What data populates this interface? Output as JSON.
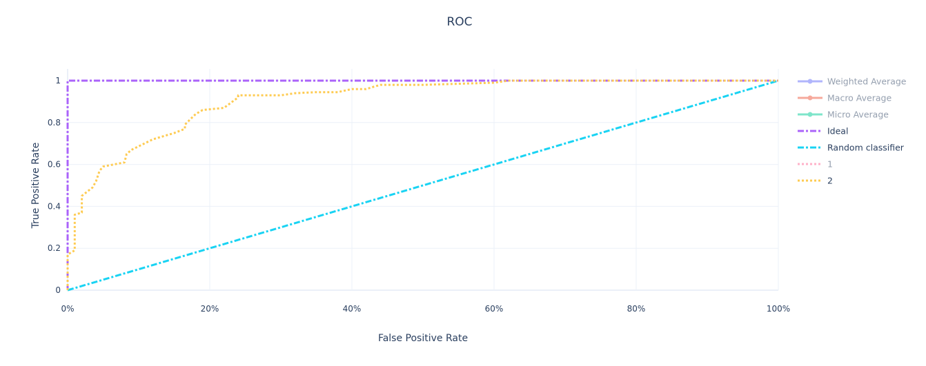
{
  "chart_data": {
    "type": "line",
    "title": "ROC",
    "xlabel": "False Positive Rate",
    "ylabel": "True Positive Rate",
    "xlim": [
      0,
      1
    ],
    "ylim": [
      0,
      1
    ],
    "x_ticks": [
      "0%",
      "20%",
      "40%",
      "60%",
      "80%",
      "100%"
    ],
    "y_ticks": [
      "0",
      "0.2",
      "0.4",
      "0.6",
      "0.8",
      "1"
    ],
    "grid": true,
    "legend_position": "right",
    "series": [
      {
        "name": "Weighted Average",
        "color": "#636efa",
        "dash": "solid",
        "visible": "legendonly",
        "marker": true,
        "x": [],
        "y": []
      },
      {
        "name": "Macro Average",
        "color": "#ef553b",
        "dash": "solid",
        "visible": "legendonly",
        "marker": true,
        "x": [],
        "y": []
      },
      {
        "name": "Micro Average",
        "color": "#00cc96",
        "dash": "solid",
        "visible": "legendonly",
        "marker": true,
        "x": [],
        "y": []
      },
      {
        "name": "Ideal",
        "color": "#ab63fa",
        "dash": "dashdot",
        "visible": true,
        "x": [
          0,
          0,
          1
        ],
        "y": [
          0,
          1,
          1
        ]
      },
      {
        "name": "Random classifier",
        "color": "#19d3f3",
        "dash": "dashdot",
        "visible": true,
        "x": [
          0,
          1
        ],
        "y": [
          0,
          1
        ]
      },
      {
        "name": "1",
        "color": "#ff6692",
        "dash": "dot",
        "visible": "legendonly",
        "x": [],
        "y": []
      },
      {
        "name": "2",
        "color": "#fecb52",
        "dash": "dot",
        "visible": true,
        "x": [
          0,
          0,
          0.01,
          0.01,
          0.02,
          0.02,
          0.035,
          0.04,
          0.045,
          0.05,
          0.08,
          0.083,
          0.09,
          0.12,
          0.15,
          0.165,
          0.165,
          0.18,
          0.19,
          0.22,
          0.24,
          0.24,
          0.3,
          0.32,
          0.35,
          0.38,
          0.4,
          0.42,
          0.43,
          0.44,
          0.5,
          0.6,
          0.62,
          0.7,
          1.0
        ],
        "y": [
          0,
          0.17,
          0.19,
          0.36,
          0.37,
          0.45,
          0.49,
          0.52,
          0.57,
          0.59,
          0.61,
          0.65,
          0.67,
          0.72,
          0.75,
          0.77,
          0.79,
          0.84,
          0.86,
          0.87,
          0.92,
          0.93,
          0.93,
          0.94,
          0.945,
          0.945,
          0.96,
          0.96,
          0.97,
          0.98,
          0.98,
          0.99,
          1.0,
          1.0,
          1.0
        ]
      }
    ]
  }
}
